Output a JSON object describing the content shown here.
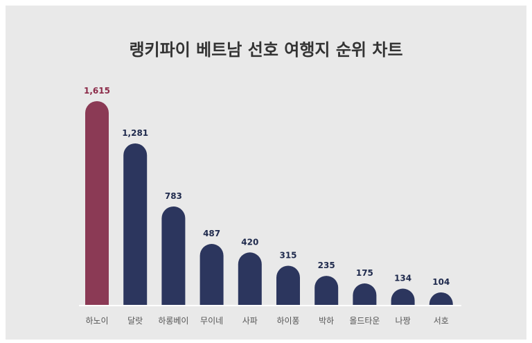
{
  "chart_data": {
    "type": "bar",
    "title": "랭키파이 베트남 선호 여행지 순위 차트",
    "categories": [
      "하노이",
      "달랏",
      "하롱베이",
      "무이네",
      "사파",
      "하이퐁",
      "박하",
      "올드타운",
      "나짱",
      "서호"
    ],
    "values": [
      1615,
      1281,
      783,
      487,
      420,
      315,
      235,
      175,
      134,
      104
    ],
    "value_labels": [
      "1,615",
      "1,281",
      "783",
      "487",
      "420",
      "315",
      "235",
      "175",
      "134",
      "104"
    ],
    "ylim": [
      0,
      1615
    ],
    "grid": false,
    "legend": "none",
    "colors": {
      "highlight": "#8b3a55",
      "highlight_label": "#8b2a48",
      "bar": "#2c365e",
      "label": "#1f2a4d",
      "baseline": "#ffffff",
      "background": "#e9e9e9"
    }
  }
}
